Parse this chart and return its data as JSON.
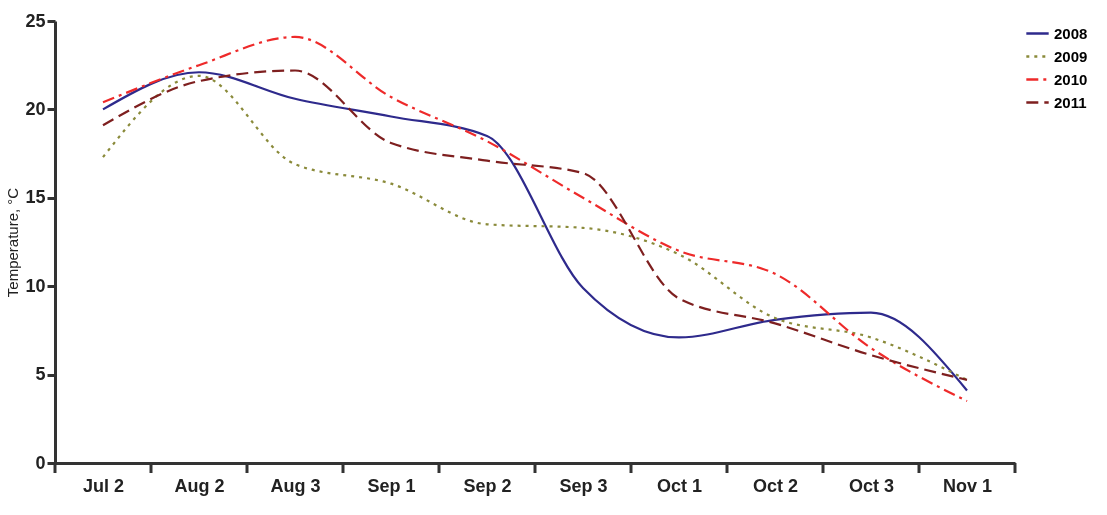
{
  "chart_data": {
    "type": "line",
    "ylabel": "Temperature, °C",
    "categories": [
      "Jul 2",
      "Aug 2",
      "Aug 3",
      "Sep 1",
      "Sep 2",
      "Sep 3",
      "Oct 1",
      "Oct 2",
      "Oct 3",
      "Nov 1"
    ],
    "series": [
      {
        "name": "2008",
        "color": "#2e2a8c",
        "line_style": "solid",
        "values": [
          20.0,
          22.1,
          20.6,
          19.6,
          18.5,
          9.9,
          7.1,
          8.1,
          8.5,
          4.1
        ]
      },
      {
        "name": "2009",
        "color": "#8a8a3a",
        "line_style": "dotted",
        "values": [
          17.3,
          21.9,
          16.9,
          15.8,
          13.5,
          13.3,
          11.8,
          8.2,
          7.1,
          4.7
        ]
      },
      {
        "name": "2010",
        "color": "#ee2a2a",
        "line_style": "dashdot",
        "values": [
          20.4,
          22.5,
          24.1,
          20.7,
          18.2,
          15.0,
          12.0,
          10.7,
          6.5,
          3.5
        ]
      },
      {
        "name": "2011",
        "color": "#7e1f1f",
        "line_style": "dashed",
        "values": [
          19.1,
          21.6,
          22.2,
          18.1,
          17.1,
          16.4,
          9.3,
          7.9,
          6.1,
          4.7
        ]
      }
    ],
    "ylim": [
      0,
      25
    ],
    "yticks": [
      0,
      5,
      10,
      15,
      20,
      25
    ],
    "grid": false,
    "legend": "top right",
    "marker": "none"
  }
}
